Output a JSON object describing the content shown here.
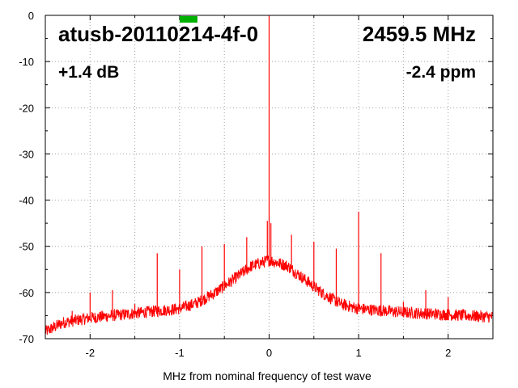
{
  "chart_data": {
    "type": "line",
    "title": "",
    "xlabel": "MHz from nominal frequency of test wave",
    "ylabel": "",
    "xlim": [
      -2.5,
      2.5
    ],
    "ylim": [
      -70,
      0
    ],
    "x_ticks": [
      -2,
      -1,
      0,
      1,
      2
    ],
    "x_tick_labels": [
      "-2",
      "-1",
      "0",
      "1",
      "2"
    ],
    "y_ticks": [
      0,
      -10,
      -20,
      -30,
      -40,
      -50,
      -60,
      -70
    ],
    "y_tick_labels": [
      "0",
      "-10",
      "-20",
      "-30",
      "-40",
      "-50",
      "-60",
      "-70"
    ],
    "grid": true,
    "annotations": {
      "device": "atusb-20110214-4f-0",
      "frequency": "2459.5 MHz",
      "level": "+1.4 dB",
      "offset": "-2.4 ppm"
    },
    "series": [
      {
        "color": "#ff0000",
        "baseline": {
          "x": [
            -2.5,
            -2.3,
            -2.0,
            -1.5,
            -1.0,
            -0.8,
            -0.6,
            -0.4,
            -0.2,
            0.0,
            0.2,
            0.4,
            0.6,
            0.8,
            1.0,
            1.5,
            2.0,
            2.5
          ],
          "y": [
            -68.5,
            -66.5,
            -65.5,
            -64.5,
            -63.5,
            -62.2,
            -60.0,
            -57.2,
            -54.3,
            -53.0,
            -54.2,
            -57.2,
            -60.2,
            -62.5,
            -63.5,
            -64.3,
            -64.8,
            -65.3
          ]
        },
        "spurs": [
          {
            "x": -2.2,
            "y": -64
          },
          {
            "x": -2.0,
            "y": -60
          },
          {
            "x": -1.75,
            "y": -59.5
          },
          {
            "x": -1.5,
            "y": -62.5
          },
          {
            "x": -1.25,
            "y": -51.5
          },
          {
            "x": -1.0,
            "y": -55
          },
          {
            "x": -0.75,
            "y": -50
          },
          {
            "x": -0.5,
            "y": -49.5
          },
          {
            "x": -0.25,
            "y": -48
          },
          {
            "x": -0.02,
            "y": -44.5
          },
          {
            "x": 0.0,
            "y": 0
          },
          {
            "x": 0.02,
            "y": -45
          },
          {
            "x": 0.25,
            "y": -47.5
          },
          {
            "x": 0.5,
            "y": -49
          },
          {
            "x": 0.75,
            "y": -50.5
          },
          {
            "x": 1.0,
            "y": -42.5
          },
          {
            "x": 1.25,
            "y": -51.5
          },
          {
            "x": 1.5,
            "y": -62
          },
          {
            "x": 1.75,
            "y": -59.5
          },
          {
            "x": 2.0,
            "y": -61
          }
        ]
      }
    ],
    "marker": {
      "x": -0.9,
      "color": "#00b000"
    }
  }
}
